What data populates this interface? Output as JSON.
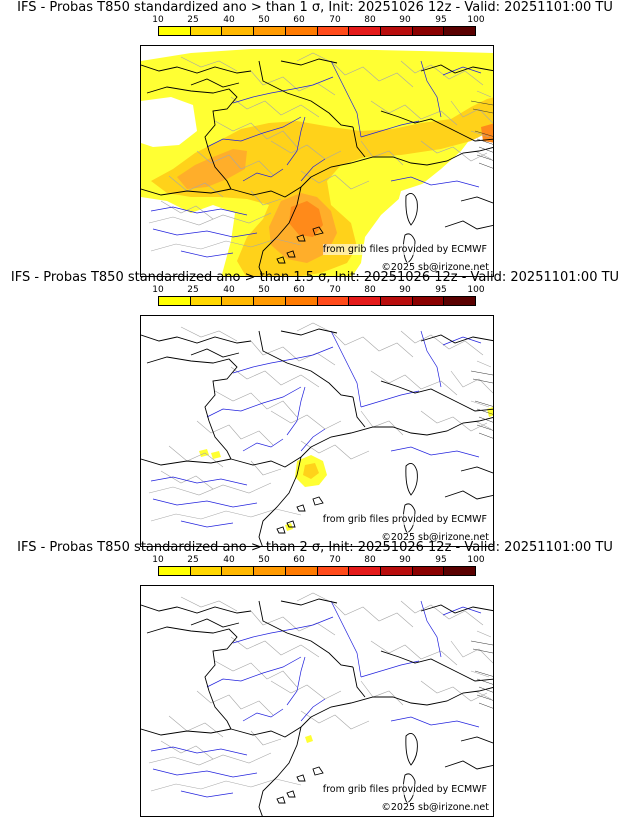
{
  "colors": {
    "scale": [
      "#ffff00",
      "#ffd700",
      "#ffb800",
      "#ff9a00",
      "#ff7a00",
      "#ff4a1a",
      "#e41a1a",
      "#b80c0c",
      "#8a0000",
      "#5a0000"
    ],
    "coast": "#000000",
    "border": "#000000",
    "admin": "#a8a8a8",
    "river": "#2222dd",
    "p_light": "#ffff33",
    "p_mid": "#ffd21a",
    "p_orange": "#ffae2a",
    "p_dark": "#ff8a1a"
  },
  "colorbar": {
    "ticks": [
      "10",
      "25",
      "40",
      "50",
      "60",
      "70",
      "80",
      "90",
      "95",
      "100"
    ]
  },
  "panels": [
    {
      "title": "IFS - Probas T850  standardized ano > than 1 σ, Init: 20251026 12z - Valid: 20251101:00 TU",
      "credit_source": "from grib files provided by ECMWF",
      "credit_copyright": "©2025 sb@irizone.net"
    },
    {
      "title": "IFS - Probas T850  standardized ano > than 1.5 σ, Init: 20251026 12z - Valid: 20251101:00 TU",
      "credit_source": "from grib files provided by ECMWF",
      "credit_copyright": "©2025 sb@irizone.net"
    },
    {
      "title": "IFS - Probas T850  standardized ano > than 2 σ, Init: 20251026 12z - Valid: 20251101:00 TU",
      "credit_source": "from grib files provided by ECMWF",
      "credit_copyright": "©2025 sb@irizone.net"
    }
  ]
}
